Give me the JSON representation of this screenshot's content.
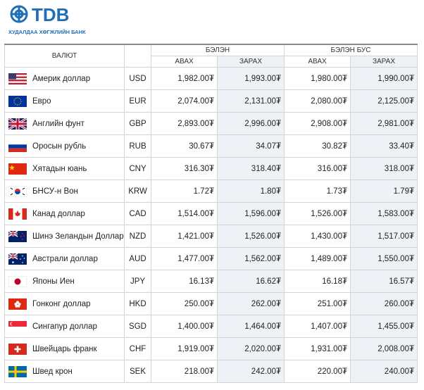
{
  "logo": {
    "name": "TDB",
    "subtitle": "ХУДАЛДАА ХӨГЖЛИЙН БАНК"
  },
  "table": {
    "header": {
      "currency": "ВАЛЮТ",
      "cash": "БЭЛЭН",
      "noncash": "БЭЛЭН БУС",
      "cash_buy": "АВАХ",
      "cash_sell": "ЗАРАХ",
      "noncash_buy": "АВАХ",
      "noncash_sell": "ЗАРАХ"
    },
    "rows": [
      [
        "Америк доллар",
        "USD",
        "1,982.00₮",
        "1,993.00₮",
        "1,980.00₮",
        "1,990.00₮"
      ],
      [
        "Евро",
        "EUR",
        "2,074.00₮",
        "2,131.00₮",
        "2,080.00₮",
        "2,125.00₮"
      ],
      [
        "Английн фунт",
        "GBP",
        "2,893.00₮",
        "2,996.00₮",
        "2,908.00₮",
        "2,981.00₮"
      ],
      [
        "Оросын рубль",
        "RUB",
        "30.67₮",
        "34.07₮",
        "30.82₮",
        "33.40₮"
      ],
      [
        "Хятадын юань",
        "CNY",
        "316.30₮",
        "318.40₮",
        "316.00₮",
        "318.00₮"
      ],
      [
        "БНСУ-н Вон",
        "KRW",
        "1.72₮",
        "1.80₮",
        "1.73₮",
        "1.79₮"
      ],
      [
        "Канад доллар",
        "CAD",
        "1,514.00₮",
        "1,596.00₮",
        "1,526.00₮",
        "1,583.00₮"
      ],
      [
        "Шинэ Зеландын Доллар",
        "NZD",
        "1,421.00₮",
        "1,526.00₮",
        "1,430.00₮",
        "1,517.00₮"
      ],
      [
        "Австрали доллар",
        "AUD",
        "1,477.00₮",
        "1,562.00₮",
        "1,489.00₮",
        "1,550.00₮"
      ],
      [
        "Японы Иен",
        "JPY",
        "16.13₮",
        "16.62₮",
        "16.18₮",
        "16.57₮"
      ],
      [
        "Гонконг доллар",
        "HKD",
        "250.00₮",
        "262.00₮",
        "251.00₮",
        "260.00₮"
      ],
      [
        "Сингапур доллар",
        "SGD",
        "1,400.00₮",
        "1,464.00₮",
        "1,407.00₮",
        "1,455.00₮"
      ],
      [
        "Швейцарь франк",
        "CHF",
        "1,919.00₮",
        "2,020.00₮",
        "1,931.00₮",
        "2,008.00₮"
      ],
      [
        "Швед крон",
        "SEK",
        "218.00₮",
        "242.00₮",
        "220.00₮",
        "240.00₮"
      ]
    ]
  }
}
